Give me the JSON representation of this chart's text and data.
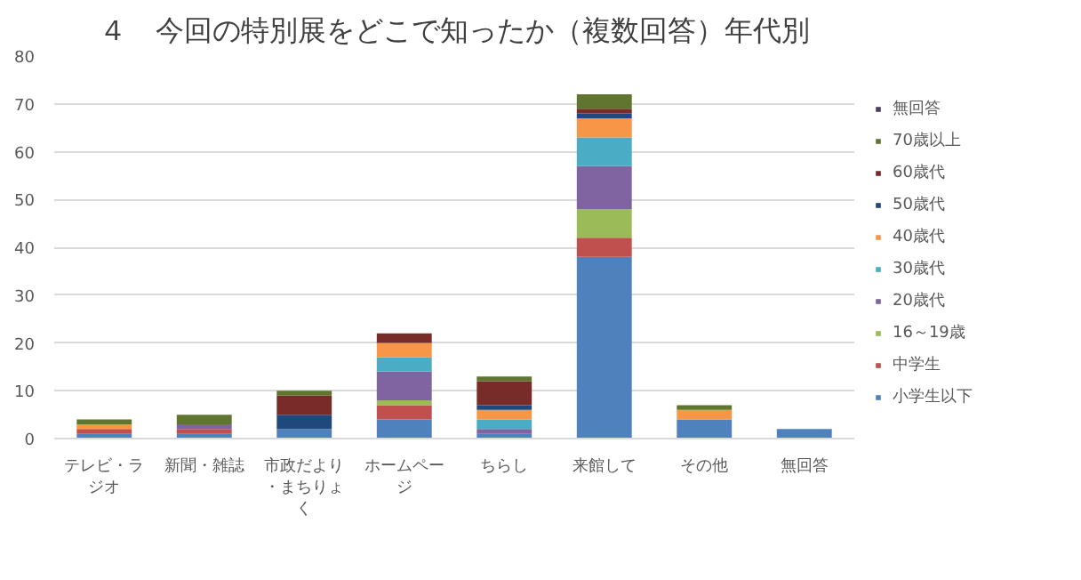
{
  "chart_data": {
    "type": "bar",
    "stacked": true,
    "title": "４　今回の特別展をどこで知ったか（複数回答）年代別",
    "categories": [
      "テレビ・ラジオ",
      "新聞・雑誌",
      "市政だより・まちりょく",
      "ホームページ",
      "ちらし",
      "来館して",
      "その他",
      "無回答"
    ],
    "series": [
      {
        "name": "小学生以下",
        "color": "#4f81bd",
        "values": [
          1,
          1,
          2,
          4,
          1,
          38,
          4,
          2
        ]
      },
      {
        "name": "中学生",
        "color": "#c0504d",
        "values": [
          1,
          1,
          0,
          3,
          0,
          4,
          0,
          0
        ]
      },
      {
        "name": "16～19歳",
        "color": "#9bbb59",
        "values": [
          0,
          0,
          0,
          1,
          0,
          6,
          0,
          0
        ]
      },
      {
        "name": "20歳代",
        "color": "#8064a2",
        "values": [
          0,
          1,
          0,
          6,
          1,
          9,
          0,
          0
        ]
      },
      {
        "name": "30歳代",
        "color": "#4bacc6",
        "values": [
          0,
          0,
          0,
          3,
          2,
          6,
          0,
          0
        ]
      },
      {
        "name": "40歳代",
        "color": "#f79646",
        "values": [
          1,
          0,
          0,
          3,
          2,
          4,
          2,
          0
        ]
      },
      {
        "name": "50歳代",
        "color": "#1f497d",
        "values": [
          0,
          0,
          3,
          0,
          1,
          1,
          0,
          0
        ]
      },
      {
        "name": "60歳代",
        "color": "#772c2a",
        "values": [
          0,
          0,
          4,
          2,
          5,
          1,
          0,
          0
        ]
      },
      {
        "name": "70歳以上",
        "color": "#5f7530",
        "values": [
          1,
          2,
          1,
          0,
          1,
          3,
          1,
          0
        ]
      },
      {
        "name": "無回答",
        "color": "#4d3b62",
        "values": [
          0,
          0,
          0,
          0,
          0,
          0,
          0,
          0
        ]
      }
    ],
    "ylim": [
      0,
      80
    ],
    "yticks": [
      0,
      10,
      20,
      30,
      40,
      50,
      60,
      70,
      80
    ],
    "grid": "y",
    "legend": "right"
  }
}
